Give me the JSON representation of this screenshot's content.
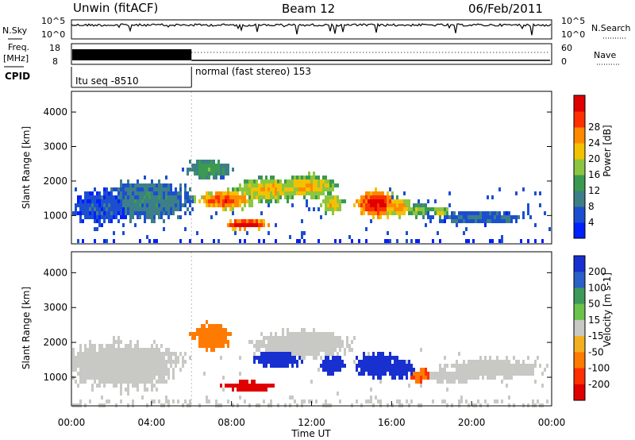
{
  "header": {
    "station": "Unwin (fitACF)",
    "beam": "Beam 12",
    "date": "06/Feb/2011"
  },
  "noise_panel": {
    "left_label": "N.Sky",
    "right_label": "N.Search",
    "left_ticks": [
      "10^5",
      "10^0"
    ],
    "right_ticks": [
      "10^5",
      "10^0"
    ]
  },
  "freq_panel": {
    "left_label_1": "Freq.",
    "left_label_2": "[MHz]",
    "right_label": "Nave",
    "left_ticks": [
      "18",
      "8"
    ],
    "right_ticks": [
      "60",
      "0"
    ]
  },
  "cpid": {
    "label": "CPID",
    "segments": [
      {
        "start_hour": 0,
        "end_hour": 6,
        "text": "Itu seq -8510"
      },
      {
        "start_hour": 6,
        "end_hour": 24,
        "text": "normal (fast stereo) 153"
      }
    ]
  },
  "x_axis": {
    "label": "Time UT",
    "ticks": [
      "00:00",
      "04:00",
      "08:00",
      "12:00",
      "16:00",
      "20:00",
      "00:00"
    ],
    "range_hours": [
      0,
      24
    ]
  },
  "chart_data": [
    {
      "type": "heatmap",
      "name": "power",
      "ylabel": "Slant Range [km]",
      "ylim": [
        180,
        4600
      ],
      "yticks": [
        "1000",
        "2000",
        "3000",
        "4000"
      ],
      "colorbar_label": "Power [dB]",
      "colorbar_ticks": [
        "4",
        "8",
        "12",
        "16",
        "20",
        "24",
        "28"
      ],
      "colorbar_colors": [
        "#0020ff",
        "#1c4fd0",
        "#3d7f87",
        "#3a9a50",
        "#8cc63f",
        "#f2c200",
        "#ff8a00",
        "#ff3000",
        "#e00000"
      ],
      "blobs": [
        {
          "t": 1.5,
          "r": 1300,
          "dt": 1.5,
          "dr": 500,
          "level": 0.15
        },
        {
          "t": 3.8,
          "r": 1500,
          "dt": 2.2,
          "dr": 600,
          "level": 0.25
        },
        {
          "t": 6.8,
          "r": 2400,
          "dt": 1.2,
          "dr": 300,
          "level": 0.35
        },
        {
          "t": 7.6,
          "r": 1500,
          "dt": 1.5,
          "dr": 300,
          "level": 0.7
        },
        {
          "t": 8.7,
          "r": 800,
          "dt": 1.2,
          "dr": 150,
          "level": 0.85
        },
        {
          "t": 9.8,
          "r": 1800,
          "dt": 1.8,
          "dr": 350,
          "level": 0.55
        },
        {
          "t": 11.8,
          "r": 1900,
          "dt": 1.4,
          "dr": 350,
          "level": 0.55
        },
        {
          "t": 13.0,
          "r": 1400,
          "dt": 0.6,
          "dr": 300,
          "level": 0.55
        },
        {
          "t": 15.2,
          "r": 1400,
          "dt": 1.1,
          "dr": 400,
          "level": 0.8
        },
        {
          "t": 16.2,
          "r": 1300,
          "dt": 0.8,
          "dr": 300,
          "level": 0.6
        },
        {
          "t": 17.3,
          "r": 1200,
          "dt": 0.6,
          "dr": 200,
          "level": 0.45
        },
        {
          "t": 18.4,
          "r": 1150,
          "dt": 0.5,
          "dr": 180,
          "level": 0.5
        },
        {
          "t": 20.5,
          "r": 1000,
          "dt": 2.5,
          "dr": 200,
          "level": 0.2
        }
      ]
    },
    {
      "type": "heatmap",
      "name": "velocity",
      "ylabel": "Slant Range [km]",
      "ylim": [
        180,
        4600
      ],
      "yticks": [
        "1000",
        "2000",
        "3000",
        "4000"
      ],
      "colorbar_label": "Velocity [m s-1]",
      "colorbar_ticks": [
        "200",
        "100",
        "50",
        "15",
        "-15",
        "-50",
        "-100",
        "-200"
      ],
      "colorbar_colors": [
        "#1830d0",
        "#2a60c8",
        "#3d9a5a",
        "#6cc24a",
        "#c8c8c4",
        "#f2b020",
        "#ff7a00",
        "#ff3000",
        "#e00000"
      ],
      "blobs": [
        {
          "t": 2.5,
          "r": 1400,
          "dt": 3.0,
          "dr": 700,
          "value": 0
        },
        {
          "t": 7.0,
          "r": 2200,
          "dt": 1.0,
          "dr": 400,
          "value": -60
        },
        {
          "t": 8.8,
          "r": 800,
          "dt": 1.3,
          "dr": 150,
          "value": -220
        },
        {
          "t": 10.2,
          "r": 1600,
          "dt": 1.2,
          "dr": 300,
          "value": 220
        },
        {
          "t": 11.5,
          "r": 2000,
          "dt": 2.5,
          "dr": 400,
          "value": 0
        },
        {
          "t": 13.0,
          "r": 1400,
          "dt": 0.6,
          "dr": 300,
          "value": 230
        },
        {
          "t": 15.2,
          "r": 1400,
          "dt": 1.1,
          "dr": 400,
          "value": 220
        },
        {
          "t": 16.3,
          "r": 1300,
          "dt": 0.8,
          "dr": 300,
          "value": 180
        },
        {
          "t": 17.4,
          "r": 1100,
          "dt": 0.5,
          "dr": 200,
          "value": -70
        },
        {
          "t": 19.0,
          "r": 1100,
          "dt": 1.5,
          "dr": 200,
          "value": 0
        },
        {
          "t": 21.0,
          "r": 1300,
          "dt": 2.5,
          "dr": 300,
          "value": 0
        }
      ]
    }
  ]
}
